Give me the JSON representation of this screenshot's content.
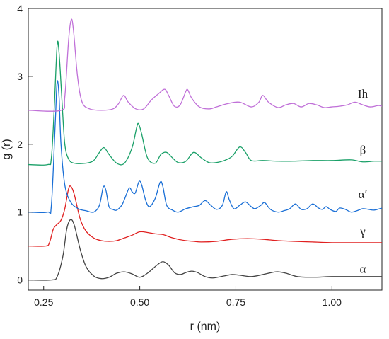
{
  "chart_data": {
    "type": "line",
    "title": "",
    "xlabel": "r (nm)",
    "ylabel": "g (r)",
    "xlim": [
      0.21,
      1.13
    ],
    "ylim": [
      -0.15,
      4.0
    ],
    "x_ticks": [
      0.25,
      0.5,
      0.75,
      1.0
    ],
    "x_tick_labels": [
      "0.25",
      "0.50",
      "0.75",
      "1.00"
    ],
    "y_ticks": [
      0,
      1,
      2,
      3,
      4
    ],
    "y_tick_labels": [
      "0",
      "1",
      "2",
      "3",
      "4"
    ],
    "grid": false,
    "legend": "none (series labeled at right end of curves)",
    "series": [
      {
        "name": "α",
        "color": "#444444",
        "label_y": 0.17,
        "points": [
          [
            0.21,
            0.0
          ],
          [
            0.27,
            0.0
          ],
          [
            0.285,
            0.05
          ],
          [
            0.3,
            0.35
          ],
          [
            0.31,
            0.75
          ],
          [
            0.32,
            0.89
          ],
          [
            0.33,
            0.8
          ],
          [
            0.345,
            0.45
          ],
          [
            0.36,
            0.2
          ],
          [
            0.38,
            0.06
          ],
          [
            0.4,
            0.02
          ],
          [
            0.42,
            0.04
          ],
          [
            0.44,
            0.1
          ],
          [
            0.46,
            0.12
          ],
          [
            0.48,
            0.09
          ],
          [
            0.5,
            0.04
          ],
          [
            0.52,
            0.1
          ],
          [
            0.545,
            0.22
          ],
          [
            0.56,
            0.27
          ],
          [
            0.575,
            0.22
          ],
          [
            0.59,
            0.11
          ],
          [
            0.605,
            0.08
          ],
          [
            0.62,
            0.11
          ],
          [
            0.635,
            0.13
          ],
          [
            0.65,
            0.11
          ],
          [
            0.67,
            0.05
          ],
          [
            0.69,
            0.03
          ],
          [
            0.72,
            0.06
          ],
          [
            0.74,
            0.08
          ],
          [
            0.76,
            0.07
          ],
          [
            0.79,
            0.05
          ],
          [
            0.82,
            0.08
          ],
          [
            0.855,
            0.12
          ],
          [
            0.88,
            0.1
          ],
          [
            0.91,
            0.05
          ],
          [
            0.95,
            0.04
          ],
          [
            1.0,
            0.05
          ],
          [
            1.05,
            0.05
          ],
          [
            1.13,
            0.05
          ]
        ]
      },
      {
        "name": "γ",
        "color": "#e02020",
        "label_y": 0.72,
        "points": [
          [
            0.21,
            0.5
          ],
          [
            0.255,
            0.5
          ],
          [
            0.265,
            0.55
          ],
          [
            0.275,
            0.75
          ],
          [
            0.285,
            0.82
          ],
          [
            0.295,
            0.88
          ],
          [
            0.305,
            1.05
          ],
          [
            0.315,
            1.35
          ],
          [
            0.322,
            1.37
          ],
          [
            0.33,
            1.25
          ],
          [
            0.345,
            0.9
          ],
          [
            0.36,
            0.72
          ],
          [
            0.38,
            0.62
          ],
          [
            0.4,
            0.58
          ],
          [
            0.42,
            0.57
          ],
          [
            0.44,
            0.58
          ],
          [
            0.46,
            0.62
          ],
          [
            0.48,
            0.66
          ],
          [
            0.5,
            0.71
          ],
          [
            0.52,
            0.7
          ],
          [
            0.54,
            0.68
          ],
          [
            0.56,
            0.67
          ],
          [
            0.58,
            0.63
          ],
          [
            0.6,
            0.6
          ],
          [
            0.62,
            0.58
          ],
          [
            0.64,
            0.57
          ],
          [
            0.66,
            0.56
          ],
          [
            0.7,
            0.57
          ],
          [
            0.74,
            0.6
          ],
          [
            0.78,
            0.61
          ],
          [
            0.82,
            0.6
          ],
          [
            0.86,
            0.58
          ],
          [
            0.9,
            0.57
          ],
          [
            0.95,
            0.56
          ],
          [
            1.0,
            0.55
          ],
          [
            1.05,
            0.55
          ],
          [
            1.13,
            0.55
          ]
        ]
      },
      {
        "name": "α′",
        "color": "#1a6fd6",
        "label_y": 1.27,
        "points": [
          [
            0.21,
            1.0
          ],
          [
            0.26,
            1.0
          ],
          [
            0.27,
            1.1
          ],
          [
            0.28,
            2.3
          ],
          [
            0.285,
            2.92
          ],
          [
            0.29,
            2.7
          ],
          [
            0.295,
            2.0
          ],
          [
            0.305,
            1.4
          ],
          [
            0.32,
            1.15
          ],
          [
            0.34,
            1.05
          ],
          [
            0.36,
            1.02
          ],
          [
            0.38,
            1.0
          ],
          [
            0.395,
            1.1
          ],
          [
            0.405,
            1.37
          ],
          [
            0.412,
            1.32
          ],
          [
            0.42,
            1.08
          ],
          [
            0.43,
            1.04
          ],
          [
            0.44,
            1.03
          ],
          [
            0.455,
            1.12
          ],
          [
            0.472,
            1.35
          ],
          [
            0.48,
            1.3
          ],
          [
            0.488,
            1.28
          ],
          [
            0.498,
            1.45
          ],
          [
            0.505,
            1.4
          ],
          [
            0.515,
            1.18
          ],
          [
            0.525,
            1.08
          ],
          [
            0.54,
            1.2
          ],
          [
            0.553,
            1.44
          ],
          [
            0.56,
            1.38
          ],
          [
            0.57,
            1.1
          ],
          [
            0.585,
            1.03
          ],
          [
            0.6,
            1.0
          ],
          [
            0.62,
            1.05
          ],
          [
            0.64,
            1.08
          ],
          [
            0.655,
            1.1
          ],
          [
            0.67,
            1.17
          ],
          [
            0.685,
            1.1
          ],
          [
            0.7,
            1.04
          ],
          [
            0.715,
            1.1
          ],
          [
            0.725,
            1.3
          ],
          [
            0.733,
            1.18
          ],
          [
            0.745,
            1.05
          ],
          [
            0.76,
            1.1
          ],
          [
            0.775,
            1.15
          ],
          [
            0.79,
            1.08
          ],
          [
            0.8,
            1.05
          ],
          [
            0.815,
            1.1
          ],
          [
            0.825,
            1.14
          ],
          [
            0.84,
            1.04
          ],
          [
            0.86,
            1.0
          ],
          [
            0.875,
            1.02
          ],
          [
            0.89,
            1.05
          ],
          [
            0.905,
            1.12
          ],
          [
            0.92,
            1.04
          ],
          [
            0.935,
            1.05
          ],
          [
            0.95,
            1.12
          ],
          [
            0.965,
            1.06
          ],
          [
            0.975,
            1.04
          ],
          [
            0.985,
            1.08
          ],
          [
            0.995,
            1.04
          ],
          [
            1.01,
            1.01
          ],
          [
            1.02,
            1.06
          ],
          [
            1.035,
            1.04
          ],
          [
            1.05,
            1.0
          ],
          [
            1.065,
            1.02
          ],
          [
            1.08,
            1.05
          ],
          [
            1.095,
            1.04
          ],
          [
            1.11,
            1.03
          ],
          [
            1.13,
            1.06
          ]
        ]
      },
      {
        "name": "β",
        "color": "#1aa068",
        "label_y": 1.92,
        "points": [
          [
            0.21,
            1.7
          ],
          [
            0.26,
            1.7
          ],
          [
            0.27,
            1.8
          ],
          [
            0.278,
            2.6
          ],
          [
            0.285,
            3.46
          ],
          [
            0.29,
            3.35
          ],
          [
            0.298,
            2.6
          ],
          [
            0.305,
            2.0
          ],
          [
            0.315,
            1.78
          ],
          [
            0.33,
            1.72
          ],
          [
            0.36,
            1.72
          ],
          [
            0.38,
            1.76
          ],
          [
            0.395,
            1.88
          ],
          [
            0.407,
            1.95
          ],
          [
            0.42,
            1.85
          ],
          [
            0.44,
            1.72
          ],
          [
            0.46,
            1.72
          ],
          [
            0.48,
            1.95
          ],
          [
            0.492,
            2.25
          ],
          [
            0.497,
            2.3
          ],
          [
            0.505,
            2.15
          ],
          [
            0.52,
            1.8
          ],
          [
            0.54,
            1.72
          ],
          [
            0.555,
            1.85
          ],
          [
            0.57,
            1.88
          ],
          [
            0.585,
            1.8
          ],
          [
            0.6,
            1.73
          ],
          [
            0.62,
            1.75
          ],
          [
            0.64,
            1.88
          ],
          [
            0.66,
            1.8
          ],
          [
            0.68,
            1.73
          ],
          [
            0.7,
            1.73
          ],
          [
            0.72,
            1.76
          ],
          [
            0.74,
            1.82
          ],
          [
            0.76,
            1.96
          ],
          [
            0.775,
            1.88
          ],
          [
            0.79,
            1.76
          ],
          [
            0.82,
            1.76
          ],
          [
            0.86,
            1.75
          ],
          [
            0.9,
            1.75
          ],
          [
            0.95,
            1.76
          ],
          [
            1.0,
            1.76
          ],
          [
            1.05,
            1.77
          ],
          [
            1.08,
            1.74
          ],
          [
            1.11,
            1.75
          ],
          [
            1.13,
            1.75
          ]
        ]
      },
      {
        "name": "Ih",
        "color": "#c070d8",
        "label_y": 2.75,
        "points": [
          [
            0.21,
            2.5
          ],
          [
            0.295,
            2.5
          ],
          [
            0.305,
            2.7
          ],
          [
            0.315,
            3.55
          ],
          [
            0.322,
            3.84
          ],
          [
            0.328,
            3.65
          ],
          [
            0.338,
            3.0
          ],
          [
            0.35,
            2.62
          ],
          [
            0.37,
            2.52
          ],
          [
            0.4,
            2.5
          ],
          [
            0.43,
            2.52
          ],
          [
            0.445,
            2.6
          ],
          [
            0.458,
            2.72
          ],
          [
            0.47,
            2.62
          ],
          [
            0.49,
            2.52
          ],
          [
            0.51,
            2.52
          ],
          [
            0.53,
            2.65
          ],
          [
            0.55,
            2.75
          ],
          [
            0.565,
            2.81
          ],
          [
            0.575,
            2.72
          ],
          [
            0.59,
            2.56
          ],
          [
            0.605,
            2.58
          ],
          [
            0.62,
            2.78
          ],
          [
            0.625,
            2.8
          ],
          [
            0.635,
            2.68
          ],
          [
            0.655,
            2.55
          ],
          [
            0.68,
            2.52
          ],
          [
            0.7,
            2.55
          ],
          [
            0.73,
            2.6
          ],
          [
            0.76,
            2.62
          ],
          [
            0.79,
            2.55
          ],
          [
            0.81,
            2.62
          ],
          [
            0.82,
            2.72
          ],
          [
            0.835,
            2.62
          ],
          [
            0.86,
            2.54
          ],
          [
            0.88,
            2.58
          ],
          [
            0.9,
            2.6
          ],
          [
            0.92,
            2.55
          ],
          [
            0.94,
            2.6
          ],
          [
            0.96,
            2.58
          ],
          [
            0.98,
            2.54
          ],
          [
            1.0,
            2.55
          ],
          [
            1.02,
            2.56
          ],
          [
            1.04,
            2.58
          ],
          [
            1.06,
            2.62
          ],
          [
            1.08,
            2.58
          ],
          [
            1.1,
            2.55
          ],
          [
            1.12,
            2.57
          ],
          [
            1.13,
            2.56
          ]
        ]
      }
    ]
  }
}
